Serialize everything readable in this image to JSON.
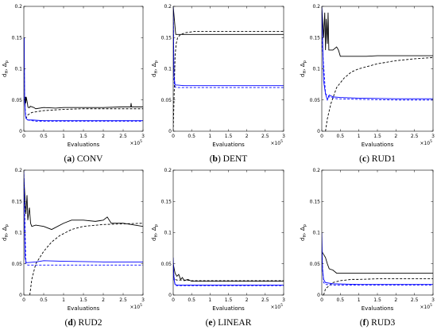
{
  "figure": {
    "colors": {
      "black": "#000000",
      "blue": "#0000ff",
      "frame": "#000000"
    }
  },
  "chart_data": [
    {
      "type": "line",
      "caption_id": "(a)",
      "caption_text": "CONV",
      "xlabel": "Evaluations",
      "ylabel": "d_{H}, Δ_{p}",
      "x_exponent": "×10^5",
      "xlim": [
        0,
        3
      ],
      "ylim": [
        0,
        0.2
      ],
      "x_ticks": [
        0,
        0.5,
        1,
        1.5,
        2,
        2.5,
        3
      ],
      "x_tick_labels": [
        "0",
        "0.5",
        "1",
        "1.5",
        "2",
        "2.5",
        "3"
      ],
      "y_ticks": [
        0,
        0.05,
        0.1,
        0.15,
        0.2
      ],
      "y_tick_labels": [
        "0",
        "0.05",
        "0.1",
        "0.15",
        "0.2"
      ],
      "series": [
        {
          "style": "solid",
          "color": "black",
          "x": [
            0.03,
            0.04,
            0.05,
            0.06,
            0.09,
            0.1,
            0.11,
            0.15,
            0.16,
            0.25,
            0.3,
            0.5,
            0.8,
            1.0,
            1.5,
            2.0,
            2.5,
            2.69,
            2.7,
            2.71,
            3.0
          ],
          "y": [
            0.04,
            0.055,
            0.045,
            0.055,
            0.045,
            0.04,
            0.038,
            0.038,
            0.04,
            0.038,
            0.036,
            0.038,
            0.037,
            0.038,
            0.038,
            0.038,
            0.039,
            0.039,
            0.045,
            0.039,
            0.039
          ]
        },
        {
          "style": "dashed",
          "color": "black",
          "x": [
            0.05,
            0.1,
            0.2,
            0.3,
            0.5,
            1.0,
            1.5,
            2.0,
            2.5,
            3.0
          ],
          "y": [
            0.02,
            0.026,
            0.03,
            0.031,
            0.033,
            0.035,
            0.036,
            0.036,
            0.036,
            0.036
          ]
        },
        {
          "style": "solid",
          "color": "blue",
          "x": [
            0.01,
            0.02,
            0.04,
            0.06,
            0.1,
            0.2,
            0.5,
            1.0,
            2.0,
            3.0
          ],
          "y": [
            0.15,
            0.05,
            0.025,
            0.02,
            0.018,
            0.018,
            0.017,
            0.017,
            0.017,
            0.017
          ]
        },
        {
          "style": "dashed",
          "color": "blue",
          "x": [
            0.01,
            0.02,
            0.05,
            0.1,
            0.3,
            1.0,
            2.0,
            3.0
          ],
          "y": [
            0.1,
            0.05,
            0.022,
            0.018,
            0.016,
            0.016,
            0.016,
            0.016
          ]
        }
      ]
    },
    {
      "type": "line",
      "caption_id": "(b)",
      "caption_text": "DENT",
      "xlabel": "Evaluations",
      "ylabel": "d_{H}, Δ_{p}",
      "x_exponent": "×10^5",
      "xlim": [
        0,
        3
      ],
      "ylim": [
        0,
        0.2
      ],
      "x_ticks": [
        0,
        0.5,
        1,
        1.5,
        2,
        2.5,
        3
      ],
      "x_tick_labels": [
        "0",
        "0.5",
        "1",
        "1.5",
        "2",
        "2.5",
        "3"
      ],
      "y_ticks": [
        0,
        0.05,
        0.1,
        0.15,
        0.2
      ],
      "y_tick_labels": [
        "0",
        "0.05",
        "0.1",
        "0.15",
        "0.2"
      ],
      "series": [
        {
          "style": "solid",
          "color": "black",
          "x": [
            0.0,
            0.03,
            0.06,
            0.07,
            0.1,
            0.3,
            1.0,
            2.0,
            3.0
          ],
          "y": [
            0.2,
            0.18,
            0.16,
            0.155,
            0.155,
            0.155,
            0.155,
            0.155,
            0.155
          ]
        },
        {
          "style": "dashed",
          "color": "black",
          "x": [
            0.0,
            0.03,
            0.05,
            0.08,
            0.12,
            0.2,
            0.35,
            0.6,
            1.0,
            2.0,
            3.0
          ],
          "y": [
            0.0,
            0.07,
            0.12,
            0.14,
            0.15,
            0.155,
            0.158,
            0.16,
            0.16,
            0.16,
            0.16
          ]
        },
        {
          "style": "solid",
          "color": "blue",
          "x": [
            0.0,
            0.02,
            0.05,
            0.1,
            0.3,
            1.0,
            2.0,
            3.0
          ],
          "y": [
            0.2,
            0.09,
            0.074,
            0.074,
            0.073,
            0.073,
            0.073,
            0.073
          ]
        },
        {
          "style": "dashed",
          "color": "blue",
          "x": [
            0.0,
            0.02,
            0.05,
            0.1,
            0.5,
            1.0,
            2.0,
            3.0
          ],
          "y": [
            0.2,
            0.08,
            0.071,
            0.07,
            0.07,
            0.07,
            0.07,
            0.07
          ]
        }
      ]
    },
    {
      "type": "line",
      "caption_id": "(c)",
      "caption_text": "RUD1",
      "xlabel": "Evaluations",
      "ylabel": "d_{H}, Δ_{p}",
      "x_exponent": "×10^5",
      "xlim": [
        0,
        3
      ],
      "ylim": [
        0,
        0.2
      ],
      "x_ticks": [
        0,
        0.5,
        1,
        1.5,
        2,
        2.5,
        3
      ],
      "x_tick_labels": [
        "0",
        "0.5",
        "1",
        "1.5",
        "2",
        "2.5",
        "3"
      ],
      "y_ticks": [
        0,
        0.05,
        0.1,
        0.15,
        0.2
      ],
      "y_tick_labels": [
        "0",
        "0.05",
        "0.1",
        "0.15",
        "0.2"
      ],
      "series": [
        {
          "style": "solid",
          "color": "black",
          "x": [
            0.0,
            0.05,
            0.08,
            0.1,
            0.12,
            0.15,
            0.17,
            0.19,
            0.2,
            0.3,
            0.4,
            0.45,
            0.5,
            1.0,
            1.2,
            1.5,
            2.0,
            2.5,
            3.0
          ],
          "y": [
            0.2,
            0.15,
            0.19,
            0.13,
            0.18,
            0.14,
            0.19,
            0.13,
            0.13,
            0.13,
            0.135,
            0.13,
            0.12,
            0.12,
            0.12,
            0.121,
            0.121,
            0.121,
            0.121
          ]
        },
        {
          "style": "dashed",
          "color": "black",
          "x": [
            0.1,
            0.15,
            0.25,
            0.4,
            0.6,
            0.8,
            1.0,
            1.5,
            2.0,
            2.5,
            3.0
          ],
          "y": [
            0.0,
            0.02,
            0.045,
            0.07,
            0.085,
            0.095,
            0.1,
            0.108,
            0.113,
            0.116,
            0.118
          ]
        },
        {
          "style": "solid",
          "color": "blue",
          "x": [
            0.0,
            0.05,
            0.1,
            0.15,
            0.2,
            0.3,
            0.5,
            1.0,
            2.0,
            3.0
          ],
          "y": [
            0.2,
            0.08,
            0.06,
            0.05,
            0.058,
            0.055,
            0.054,
            0.053,
            0.052,
            0.052
          ]
        },
        {
          "style": "dashed",
          "color": "blue",
          "x": [
            0.0,
            0.1,
            0.2,
            0.4,
            1.0,
            2.0,
            3.0
          ],
          "y": [
            0.15,
            0.06,
            0.055,
            0.052,
            0.051,
            0.05,
            0.05
          ]
        }
      ]
    },
    {
      "type": "line",
      "caption_id": "(d)",
      "caption_text": "RUD2",
      "xlabel": "Evaluations",
      "ylabel": "d_{H}, Δ_{p}",
      "x_exponent": "×10^5",
      "xlim": [
        0,
        3
      ],
      "ylim": [
        0,
        0.2
      ],
      "x_ticks": [
        0,
        0.5,
        1,
        1.5,
        2,
        2.5,
        3
      ],
      "x_tick_labels": [
        "0",
        "0.5",
        "1",
        "1.5",
        "2",
        "2.5",
        "3"
      ],
      "y_ticks": [
        0,
        0.05,
        0.1,
        0.15,
        0.2
      ],
      "y_tick_labels": [
        "0",
        "0.05",
        "0.1",
        "0.15",
        "0.2"
      ],
      "series": [
        {
          "style": "solid",
          "color": "black",
          "x": [
            0.0,
            0.05,
            0.08,
            0.1,
            0.14,
            0.17,
            0.2,
            0.3,
            0.5,
            0.7,
            1.0,
            1.2,
            1.5,
            1.8,
            2.0,
            2.1,
            2.2,
            2.5,
            3.0
          ],
          "y": [
            0.19,
            0.13,
            0.16,
            0.12,
            0.14,
            0.115,
            0.11,
            0.112,
            0.11,
            0.105,
            0.115,
            0.12,
            0.12,
            0.118,
            0.12,
            0.125,
            0.115,
            0.115,
            0.11
          ]
        },
        {
          "style": "dashed",
          "color": "black",
          "x": [
            0.15,
            0.2,
            0.3,
            0.5,
            0.7,
            0.9,
            1.2,
            1.5,
            2.0,
            2.5,
            3.0
          ],
          "y": [
            0.0,
            0.025,
            0.05,
            0.07,
            0.085,
            0.095,
            0.105,
            0.11,
            0.113,
            0.114,
            0.115
          ]
        },
        {
          "style": "solid",
          "color": "blue",
          "x": [
            0.0,
            0.03,
            0.06,
            0.1,
            0.3,
            0.5,
            1.0,
            2.0,
            3.0
          ],
          "y": [
            0.2,
            0.06,
            0.052,
            0.052,
            0.053,
            0.055,
            0.054,
            0.053,
            0.053
          ]
        },
        {
          "style": "dashed",
          "color": "blue",
          "x": [
            0.0,
            0.05,
            0.1,
            0.3,
            1.0,
            2.0,
            3.0
          ],
          "y": [
            0.2,
            0.05,
            0.048,
            0.048,
            0.048,
            0.048,
            0.048
          ]
        }
      ]
    },
    {
      "type": "line",
      "caption_id": "(e)",
      "caption_text": "LINEAR",
      "xlabel": "Evaluations",
      "ylabel": "d_{H}, Δ_{p}",
      "x_exponent": "×10^5",
      "xlim": [
        0,
        3
      ],
      "ylim": [
        0,
        0.2
      ],
      "x_ticks": [
        0,
        0.5,
        1,
        1.5,
        2,
        2.5,
        3
      ],
      "x_tick_labels": [
        "0",
        "0.5",
        "1",
        "1.5",
        "2",
        "2.5",
        "3"
      ],
      "y_ticks": [
        0,
        0.05,
        0.1,
        0.15,
        0.2
      ],
      "y_tick_labels": [
        "0",
        "0.05",
        "0.1",
        "0.15",
        "0.2"
      ],
      "series": [
        {
          "style": "solid",
          "color": "black",
          "x": [
            0.0,
            0.05,
            0.1,
            0.15,
            0.2,
            0.25,
            0.3,
            0.4,
            0.5,
            0.7,
            1.0,
            2.0,
            3.0
          ],
          "y": [
            0.05,
            0.035,
            0.03,
            0.033,
            0.025,
            0.028,
            0.023,
            0.025,
            0.022,
            0.022,
            0.022,
            0.022,
            0.022
          ]
        },
        {
          "style": "dashed",
          "color": "black",
          "x": [
            0.0,
            0.05,
            0.1,
            0.3,
            0.5,
            1.0,
            2.0,
            3.0
          ],
          "y": [
            0.03,
            0.025,
            0.024,
            0.024,
            0.023,
            0.023,
            0.023,
            0.023
          ]
        },
        {
          "style": "solid",
          "color": "blue",
          "x": [
            0.0,
            0.02,
            0.05,
            0.1,
            0.5,
            1.0,
            3.0
          ],
          "y": [
            0.06,
            0.025,
            0.017,
            0.016,
            0.016,
            0.016,
            0.016
          ]
        },
        {
          "style": "dashed",
          "color": "blue",
          "x": [
            0.0,
            0.05,
            0.1,
            1.0,
            3.0
          ],
          "y": [
            0.04,
            0.016,
            0.015,
            0.015,
            0.015
          ]
        }
      ]
    },
    {
      "type": "line",
      "caption_id": "(f)",
      "caption_text": "RUD3",
      "xlabel": "Evaluations",
      "ylabel": "d_{H}, Δ_{p}",
      "x_exponent": "×10^5",
      "xlim": [
        0,
        3
      ],
      "ylim": [
        0,
        0.2
      ],
      "x_ticks": [
        0,
        0.5,
        1,
        1.5,
        2,
        2.5,
        3
      ],
      "x_tick_labels": [
        "0",
        "0.5",
        "1",
        "1.5",
        "2",
        "2.5",
        "3"
      ],
      "y_ticks": [
        0,
        0.05,
        0.1,
        0.15,
        0.2
      ],
      "y_tick_labels": [
        "0",
        "0.05",
        "0.1",
        "0.15",
        "0.2"
      ],
      "series": [
        {
          "style": "solid",
          "color": "black",
          "x": [
            0.0,
            0.1,
            0.15,
            0.2,
            0.3,
            0.4,
            0.5,
            0.8,
            1.0,
            1.3,
            2.0,
            2.5,
            3.0
          ],
          "y": [
            0.07,
            0.06,
            0.05,
            0.042,
            0.04,
            0.035,
            0.035,
            0.035,
            0.035,
            0.035,
            0.035,
            0.035,
            0.035
          ]
        },
        {
          "style": "dashed",
          "color": "black",
          "x": [
            0.05,
            0.1,
            0.2,
            0.3,
            0.5,
            0.8,
            1.0,
            1.5,
            2.0,
            3.0
          ],
          "y": [
            0.0,
            0.01,
            0.015,
            0.02,
            0.023,
            0.025,
            0.025,
            0.026,
            0.026,
            0.026
          ]
        },
        {
          "style": "solid",
          "color": "blue",
          "x": [
            0.0,
            0.02,
            0.05,
            0.1,
            0.3,
            1.0,
            2.0,
            3.0
          ],
          "y": [
            0.1,
            0.04,
            0.025,
            0.02,
            0.018,
            0.017,
            0.017,
            0.017
          ]
        },
        {
          "style": "dashed",
          "color": "blue",
          "x": [
            0.0,
            0.05,
            0.1,
            0.3,
            1.0,
            2.0,
            3.0
          ],
          "y": [
            0.06,
            0.02,
            0.017,
            0.016,
            0.016,
            0.016,
            0.016
          ]
        }
      ]
    }
  ]
}
